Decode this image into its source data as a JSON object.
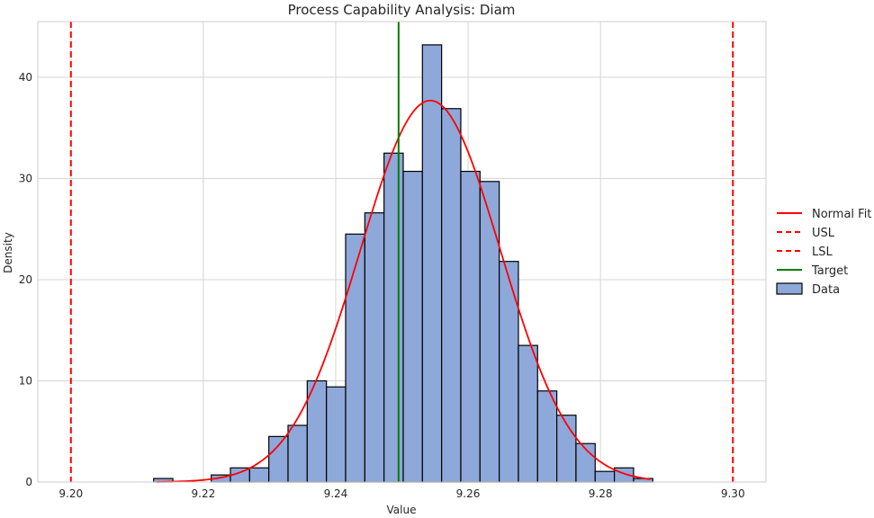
{
  "chart_data": {
    "type": "histogram",
    "title": "Process Capability Analysis: Diam",
    "xlabel": "Value",
    "ylabel": "Density",
    "xlim": [
      9.195,
      9.305
    ],
    "ylim": [
      0,
      45.5
    ],
    "xticks": [
      9.2,
      9.22,
      9.24,
      9.26,
      9.28,
      9.3
    ],
    "xtick_labels": [
      "9.20",
      "9.22",
      "9.24",
      "9.26",
      "9.28",
      "9.30"
    ],
    "yticks": [
      0,
      10,
      20,
      30,
      40
    ],
    "ytick_labels": [
      "0",
      "10",
      "20",
      "30",
      "40"
    ],
    "grid": true,
    "legend_position": "right",
    "histogram": {
      "name": "Data",
      "color": "#8ea8da",
      "edge_color": "#000000",
      "bin_start": 9.2125,
      "bin_width": 0.0029,
      "densities": [
        0.35,
        0,
        0,
        0.7,
        1.4,
        1.4,
        4.5,
        5.6,
        10.0,
        9.4,
        24.5,
        26.6,
        32.5,
        30.7,
        43.2,
        36.9,
        30.7,
        29.7,
        21.8,
        13.5,
        9.0,
        6.6,
        3.8,
        1.05,
        1.4,
        0.35
      ]
    },
    "normal_fit": {
      "name": "Normal Fit",
      "color": "#ff0000",
      "mean": 9.2543,
      "std": 0.0106,
      "peak": 37.7,
      "x_range": [
        9.213,
        9.2875
      ]
    },
    "usl": {
      "name": "USL",
      "value": 9.3,
      "color": "#ff0000",
      "style": "dashed"
    },
    "lsl": {
      "name": "LSL",
      "value": 9.2,
      "color": "#ff0000",
      "style": "dashed"
    },
    "target": {
      "name": "Target",
      "value": 9.2495,
      "color": "#008000",
      "style": "solid"
    },
    "legend": [
      {
        "label": "Normal Fit",
        "kind": "line",
        "color": "#ff0000",
        "dash": ""
      },
      {
        "label": "USL",
        "kind": "line",
        "color": "#ff0000",
        "dash": "6,4"
      },
      {
        "label": "LSL",
        "kind": "line",
        "color": "#ff0000",
        "dash": "6,4"
      },
      {
        "label": "Target",
        "kind": "line",
        "color": "#008000",
        "dash": ""
      },
      {
        "label": "Data",
        "kind": "patch",
        "color": "#8ea8da",
        "dash": ""
      }
    ]
  }
}
